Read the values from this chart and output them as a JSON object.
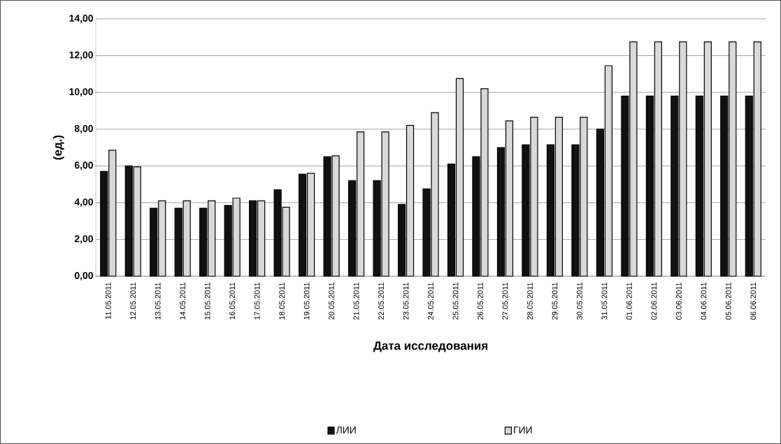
{
  "chart_data": {
    "type": "bar",
    "xlabel": "Дата исследования",
    "ylabel": "(ед.)",
    "categories": [
      "11.05.2011",
      "12.05.2011",
      "13.05.2011",
      "14.05.2011",
      "15.05.2011",
      "16.05.2011",
      "17.05.2011",
      "18.05.2011",
      "19.05.2011",
      "20.05.2011",
      "21.05.2011",
      "22.05.2011",
      "23.05.2011",
      "24.05.2011",
      "25.05.2011",
      "26.05.2011",
      "27.05.2011",
      "28.05.2011",
      "29.05.2011",
      "30.05.2011",
      "31.05.2011",
      "01.06.2011",
      "02.06.2011",
      "03.06.2011",
      "04.06.2011",
      "05.06.2011",
      "06.06.2011"
    ],
    "series": [
      {
        "name": "ЛИИ",
        "color": "#111111",
        "values": [
          5.7,
          6.0,
          3.7,
          3.7,
          3.7,
          3.85,
          4.1,
          4.7,
          5.55,
          6.5,
          5.2,
          5.2,
          3.9,
          4.75,
          6.1,
          6.5,
          7.0,
          7.15,
          7.15,
          7.15,
          8.0,
          9.8,
          9.8,
          9.8,
          9.8,
          9.8,
          9.8
        ]
      },
      {
        "name": "ГИИ",
        "color": "#d9d9d9",
        "values": [
          6.85,
          5.95,
          4.1,
          4.1,
          4.1,
          4.25,
          4.1,
          3.75,
          5.6,
          6.55,
          7.85,
          7.85,
          8.2,
          8.9,
          10.75,
          10.2,
          8.45,
          8.65,
          8.65,
          8.65,
          11.45,
          12.75,
          12.75,
          12.75,
          12.75,
          12.75,
          12.75
        ]
      }
    ],
    "ylim": [
      0,
      14
    ],
    "yticks": [
      {
        "value": 0,
        "label": "0,00"
      },
      {
        "value": 2,
        "label": "2,00"
      },
      {
        "value": 4,
        "label": "4,00"
      },
      {
        "value": 6,
        "label": "6,00"
      },
      {
        "value": 8,
        "label": "8,00"
      },
      {
        "value": 10,
        "label": "10,00"
      },
      {
        "value": 12,
        "label": "12,00"
      },
      {
        "value": 14,
        "label": "14,00"
      }
    ],
    "grid": "y",
    "legend": "bottom"
  }
}
